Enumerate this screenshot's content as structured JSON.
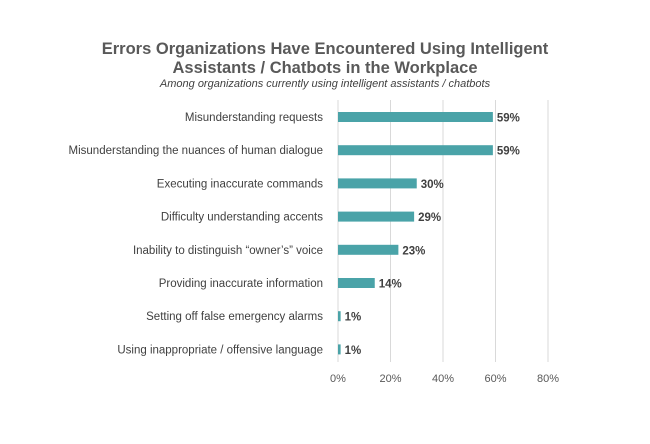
{
  "chart_data": {
    "type": "bar",
    "orientation": "horizontal",
    "title_line1": "Errors Organizations Have Encountered Using Intelligent",
    "title_line2": "Assistants / Chatbots in the Workplace",
    "subtitle": "Among organizations currently using intelligent assistants / chatbots",
    "categories": [
      "Misunderstanding requests",
      "Misunderstanding the nuances of human dialogue",
      "Executing inaccurate commands",
      "Difficulty understanding accents",
      "Inability to distinguish “owner’s” voice",
      "Providing inaccurate information",
      "Setting off false emergency alarms",
      "Using inappropriate / offensive language"
    ],
    "values": [
      59,
      59,
      30,
      29,
      23,
      14,
      1,
      1
    ],
    "value_labels": [
      "59%",
      "59%",
      "30%",
      "29%",
      "23%",
      "14%",
      "1%",
      "1%"
    ],
    "xlim": [
      0,
      80
    ],
    "x_ticks": [
      0,
      20,
      40,
      60,
      80
    ],
    "x_tick_labels": [
      "0%",
      "20%",
      "40%",
      "60%",
      "80%"
    ],
    "grid": true,
    "bar_color": "#4aa3a8",
    "gridline_color": "#d9d9d9"
  }
}
